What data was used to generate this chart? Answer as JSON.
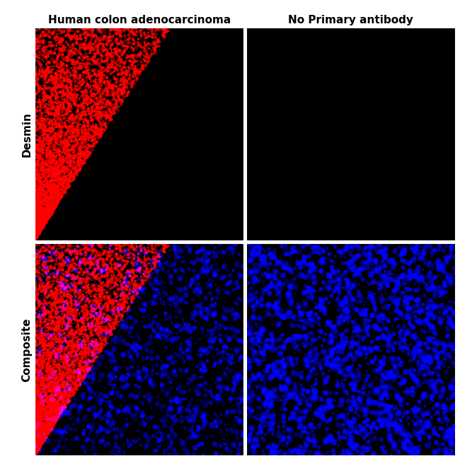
{
  "figure_width": 6.5,
  "figure_height": 6.52,
  "dpi": 100,
  "background_color": "#ffffff",
  "col_labels": [
    "Human colon adenocarcinoma",
    "No Primary antibody"
  ],
  "row_labels": [
    "Desmin",
    "Composite"
  ],
  "col_label_fontsize": 11,
  "row_label_fontsize": 11,
  "label_color": "#000000",
  "panel_bg": "#000000",
  "border_color": "#ffffff",
  "border_width": 1.5
}
